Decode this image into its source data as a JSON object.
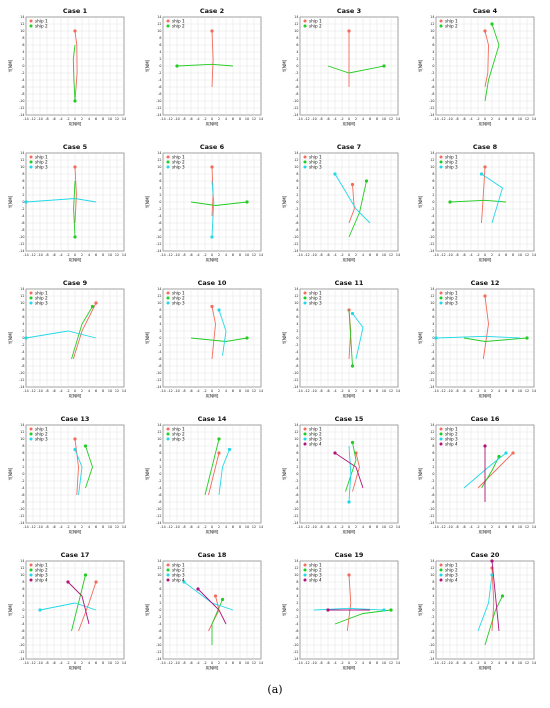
{
  "caption": "(a)",
  "colors": {
    "ship 1": "#f26b5b",
    "ship 2": "#22cc22",
    "ship 3": "#22d8e8",
    "ship 4": "#b0127a"
  },
  "chart_data": [
    {
      "type": "line",
      "title": "Case 1",
      "xlabel": "X[NM]",
      "ylabel": "Y[NM]",
      "xlim": [
        -14,
        14
      ],
      "ylim": [
        -14,
        14
      ],
      "legend": "top-left",
      "series": [
        {
          "name": "ship 1",
          "x": [
            0,
            0.5,
            0.6,
            0
          ],
          "y": [
            10,
            6,
            -2,
            -10
          ]
        },
        {
          "name": "ship 2",
          "x": [
            0,
            -0.3,
            -0.5,
            0
          ],
          "y": [
            -10,
            -4,
            2,
            6
          ]
        }
      ]
    },
    {
      "type": "line",
      "title": "Case 2",
      "xlabel": "X[NM]",
      "ylabel": "Y[NM]",
      "xlim": [
        -14,
        14
      ],
      "ylim": [
        -14,
        14
      ],
      "legend": "top-left",
      "series": [
        {
          "name": "ship 1",
          "x": [
            0,
            0.3,
            0
          ],
          "y": [
            10,
            2,
            -6
          ]
        },
        {
          "name": "ship 2",
          "x": [
            -10,
            0,
            6
          ],
          "y": [
            0,
            0.5,
            0
          ]
        }
      ]
    },
    {
      "type": "line",
      "title": "Case 3",
      "xlabel": "X[NM]",
      "ylabel": "Y[NM]",
      "xlim": [
        -14,
        14
      ],
      "ylim": [
        -14,
        14
      ],
      "legend": "top-left",
      "series": [
        {
          "name": "ship 1",
          "x": [
            0,
            0,
            0
          ],
          "y": [
            10,
            0,
            -6
          ]
        },
        {
          "name": "ship 2",
          "x": [
            10,
            0,
            -6
          ],
          "y": [
            0,
            -2,
            0
          ]
        }
      ]
    },
    {
      "type": "line",
      "title": "Case 4",
      "xlabel": "X[NM]",
      "ylabel": "Y[NM]",
      "xlim": [
        -14,
        14
      ],
      "ylim": [
        -14,
        14
      ],
      "legend": "top-left",
      "series": [
        {
          "name": "ship 1",
          "x": [
            0,
            1,
            0.8,
            0
          ],
          "y": [
            10,
            6,
            -2,
            -6
          ]
        },
        {
          "name": "ship 2",
          "x": [
            2,
            4,
            1,
            0
          ],
          "y": [
            12,
            6,
            -4,
            -10
          ]
        }
      ]
    },
    {
      "type": "line",
      "title": "Case 5",
      "xlabel": "X[NM]",
      "ylabel": "Y[NM]",
      "xlim": [
        -14,
        14
      ],
      "ylim": [
        -14,
        14
      ],
      "legend": "top-left",
      "series": [
        {
          "name": "ship 1",
          "x": [
            0,
            0.4,
            0
          ],
          "y": [
            10,
            2,
            -6
          ]
        },
        {
          "name": "ship 2",
          "x": [
            0,
            -0.4,
            0
          ],
          "y": [
            -10,
            -2,
            6
          ]
        },
        {
          "name": "ship 3",
          "x": [
            -14,
            0,
            6
          ],
          "y": [
            0,
            1,
            0
          ]
        }
      ]
    },
    {
      "type": "line",
      "title": "Case 6",
      "xlabel": "X[NM]",
      "ylabel": "Y[NM]",
      "xlim": [
        -14,
        14
      ],
      "ylim": [
        -14,
        14
      ],
      "legend": "top-left",
      "series": [
        {
          "name": "ship 1",
          "x": [
            0,
            0.3,
            0
          ],
          "y": [
            10,
            2,
            -4
          ]
        },
        {
          "name": "ship 2",
          "x": [
            10,
            1,
            -6
          ],
          "y": [
            0,
            -1,
            0
          ]
        },
        {
          "name": "ship 3",
          "x": [
            0,
            0.5,
            0
          ],
          "y": [
            -10,
            0,
            6
          ]
        }
      ]
    },
    {
      "type": "line",
      "title": "Case 7",
      "xlabel": "X[NM]",
      "ylabel": "Y[NM]",
      "xlim": [
        -14,
        14
      ],
      "ylim": [
        -14,
        14
      ],
      "legend": "top-left",
      "series": [
        {
          "name": "ship 1",
          "x": [
            1,
            1.5,
            0
          ],
          "y": [
            5,
            -2,
            -6
          ]
        },
        {
          "name": "ship 2",
          "x": [
            5,
            3,
            0
          ],
          "y": [
            6,
            -3,
            -10
          ]
        },
        {
          "name": "ship 3",
          "x": [
            -4,
            2,
            6
          ],
          "y": [
            8,
            -2,
            -6
          ]
        }
      ]
    },
    {
      "type": "line",
      "title": "Case 8",
      "xlabel": "X[NM]",
      "ylabel": "Y[NM]",
      "xlim": [
        -14,
        14
      ],
      "ylim": [
        -14,
        14
      ],
      "legend": "top-left",
      "series": [
        {
          "name": "ship 1",
          "x": [
            0,
            -0.5,
            -1
          ],
          "y": [
            10,
            2,
            -6
          ]
        },
        {
          "name": "ship 2",
          "x": [
            -10,
            0,
            6
          ],
          "y": [
            0,
            0.5,
            0
          ]
        },
        {
          "name": "ship 3",
          "x": [
            -1,
            5,
            2
          ],
          "y": [
            8,
            4,
            -6
          ]
        }
      ]
    },
    {
      "type": "line",
      "title": "Case 9",
      "xlabel": "X[NM]",
      "ylabel": "Y[NM]",
      "xlim": [
        -14,
        14
      ],
      "ylim": [
        -14,
        14
      ],
      "legend": "top-left",
      "series": [
        {
          "name": "ship 1",
          "x": [
            6,
            2,
            -0.5
          ],
          "y": [
            10,
            2,
            -6
          ]
        },
        {
          "name": "ship 2",
          "x": [
            5,
            2,
            -1
          ],
          "y": [
            9,
            4,
            -6
          ]
        },
        {
          "name": "ship 3",
          "x": [
            -14,
            -2,
            6
          ],
          "y": [
            0,
            2,
            0
          ]
        }
      ]
    },
    {
      "type": "line",
      "title": "Case 10",
      "xlabel": "X[NM]",
      "ylabel": "Y[NM]",
      "xlim": [
        -14,
        14
      ],
      "ylim": [
        -14,
        14
      ],
      "legend": "top-left",
      "series": [
        {
          "name": "ship 1",
          "x": [
            0,
            1,
            0
          ],
          "y": [
            9,
            4,
            -6
          ]
        },
        {
          "name": "ship 2",
          "x": [
            10,
            4,
            -6
          ],
          "y": [
            0,
            -1,
            0
          ]
        },
        {
          "name": "ship 3",
          "x": [
            2,
            4,
            3
          ],
          "y": [
            8,
            2,
            -5
          ]
        }
      ]
    },
    {
      "type": "line",
      "title": "Case 11",
      "xlabel": "X[NM]",
      "ylabel": "Y[NM]",
      "xlim": [
        -14,
        14
      ],
      "ylim": [
        -14,
        14
      ],
      "legend": "top-left",
      "series": [
        {
          "name": "ship 1",
          "x": [
            0,
            0.5,
            0
          ],
          "y": [
            8,
            2,
            -6
          ]
        },
        {
          "name": "ship 2",
          "x": [
            1,
            0.5,
            0
          ],
          "y": [
            -8,
            0,
            8
          ]
        },
        {
          "name": "ship 3",
          "x": [
            1,
            4,
            2
          ],
          "y": [
            7,
            3,
            -6
          ]
        }
      ]
    },
    {
      "type": "line",
      "title": "Case 12",
      "xlabel": "X[NM]",
      "ylabel": "Y[NM]",
      "xlim": [
        -14,
        14
      ],
      "ylim": [
        -14,
        14
      ],
      "legend": "top-left",
      "series": [
        {
          "name": "ship 1",
          "x": [
            0,
            1,
            -0.5
          ],
          "y": [
            12,
            4,
            -6
          ]
        },
        {
          "name": "ship 2",
          "x": [
            12,
            0,
            -6
          ],
          "y": [
            0,
            -1,
            0
          ]
        },
        {
          "name": "ship 3",
          "x": [
            -14,
            0,
            10
          ],
          "y": [
            0,
            0.5,
            0
          ]
        }
      ]
    },
    {
      "type": "line",
      "title": "Case 13",
      "xlabel": "X[NM]",
      "ylabel": "Y[NM]",
      "xlim": [
        -14,
        14
      ],
      "ylim": [
        -14,
        14
      ],
      "legend": "top-left",
      "series": [
        {
          "name": "ship 1",
          "x": [
            0,
            1,
            0.5
          ],
          "y": [
            10,
            2,
            -6
          ]
        },
        {
          "name": "ship 2",
          "x": [
            3,
            5,
            3
          ],
          "y": [
            8,
            2,
            -4
          ]
        },
        {
          "name": "ship 3",
          "x": [
            0,
            2,
            1
          ],
          "y": [
            7,
            2,
            -6
          ]
        }
      ]
    },
    {
      "type": "line",
      "title": "Case 14",
      "xlabel": "X[NM]",
      "ylabel": "Y[NM]",
      "xlim": [
        -14,
        14
      ],
      "ylim": [
        -14,
        14
      ],
      "legend": "top-left",
      "series": [
        {
          "name": "ship 1",
          "x": [
            2,
            1,
            -1
          ],
          "y": [
            6,
            2,
            -6
          ]
        },
        {
          "name": "ship 2",
          "x": [
            2,
            0,
            -2
          ],
          "y": [
            10,
            2,
            -6
          ]
        },
        {
          "name": "ship 3",
          "x": [
            5,
            3,
            2
          ],
          "y": [
            7,
            2,
            -6
          ]
        }
      ]
    },
    {
      "type": "line",
      "title": "Case 15",
      "xlabel": "X[NM]",
      "ylabel": "Y[NM]",
      "xlim": [
        -14,
        14
      ],
      "ylim": [
        -14,
        14
      ],
      "legend": "top-left",
      "series": [
        {
          "name": "ship 1",
          "x": [
            2,
            3,
            1
          ],
          "y": [
            6,
            2,
            -5
          ]
        },
        {
          "name": "ship 2",
          "x": [
            1,
            2,
            -1
          ],
          "y": [
            9,
            4,
            -5
          ]
        },
        {
          "name": "ship 3",
          "x": [
            0,
            0.5,
            0
          ],
          "y": [
            -8,
            0,
            8
          ]
        },
        {
          "name": "ship 4",
          "x": [
            -4,
            2,
            4
          ],
          "y": [
            6,
            2,
            -4
          ]
        }
      ]
    },
    {
      "type": "line",
      "title": "Case 16",
      "xlabel": "X[NM]",
      "ylabel": "Y[NM]",
      "xlim": [
        -14,
        14
      ],
      "ylim": [
        -14,
        14
      ],
      "legend": "top-left",
      "series": [
        {
          "name": "ship 1",
          "x": [
            8,
            4,
            -2
          ],
          "y": [
            6,
            2,
            -4
          ]
        },
        {
          "name": "ship 2",
          "x": [
            4,
            2,
            -1
          ],
          "y": [
            5,
            1,
            -4
          ]
        },
        {
          "name": "ship 3",
          "x": [
            6,
            1,
            -6
          ],
          "y": [
            6,
            2,
            -4
          ]
        },
        {
          "name": "ship 4",
          "x": [
            0,
            0,
            0
          ],
          "y": [
            8,
            0,
            -8
          ]
        }
      ]
    },
    {
      "type": "line",
      "title": "Case 17",
      "xlabel": "X[NM]",
      "ylabel": "Y[NM]",
      "xlim": [
        -14,
        14
      ],
      "ylim": [
        -14,
        14
      ],
      "legend": "top-left",
      "series": [
        {
          "name": "ship 1",
          "x": [
            6,
            4,
            1
          ],
          "y": [
            8,
            2,
            -6
          ]
        },
        {
          "name": "ship 2",
          "x": [
            3,
            1,
            -1
          ],
          "y": [
            10,
            2,
            -6
          ]
        },
        {
          "name": "ship 3",
          "x": [
            -10,
            0,
            6
          ],
          "y": [
            0,
            2,
            0
          ]
        },
        {
          "name": "ship 4",
          "x": [
            -2,
            2,
            4
          ],
          "y": [
            8,
            4,
            -4
          ]
        }
      ]
    },
    {
      "type": "line",
      "title": "Case 18",
      "xlabel": "X[NM]",
      "ylabel": "Y[NM]",
      "xlim": [
        -14,
        14
      ],
      "ylim": [
        -14,
        14
      ],
      "legend": "top-left",
      "series": [
        {
          "name": "ship 1",
          "x": [
            1,
            2,
            -1
          ],
          "y": [
            4,
            0,
            -6
          ]
        },
        {
          "name": "ship 2",
          "x": [
            3,
            0,
            0
          ],
          "y": [
            3,
            -4,
            -10
          ]
        },
        {
          "name": "ship 3",
          "x": [
            -8,
            0,
            6
          ],
          "y": [
            8,
            2,
            0
          ]
        },
        {
          "name": "ship 4",
          "x": [
            -4,
            2,
            4
          ],
          "y": [
            6,
            0,
            -4
          ]
        }
      ]
    },
    {
      "type": "line",
      "title": "Case 19",
      "xlabel": "X[NM]",
      "ylabel": "Y[NM]",
      "xlim": [
        -14,
        14
      ],
      "ylim": [
        -14,
        14
      ],
      "legend": "top-left",
      "series": [
        {
          "name": "ship 1",
          "x": [
            0,
            0.5,
            -0.5
          ],
          "y": [
            10,
            2,
            -6
          ]
        },
        {
          "name": "ship 2",
          "x": [
            12,
            4,
            -4
          ],
          "y": [
            0,
            -1,
            -4
          ]
        },
        {
          "name": "ship 3",
          "x": [
            10,
            0,
            -10
          ],
          "y": [
            0,
            0.5,
            0
          ]
        },
        {
          "name": "ship 4",
          "x": [
            -6,
            0,
            6
          ],
          "y": [
            0,
            0,
            0
          ]
        }
      ]
    },
    {
      "type": "line",
      "title": "Case 20",
      "xlabel": "X[NM]",
      "ylabel": "Y[NM]",
      "xlim": [
        -14,
        14
      ],
      "ylim": [
        -14,
        14
      ],
      "legend": "top-left",
      "series": [
        {
          "name": "ship 1",
          "x": [
            2,
            2.5,
            2
          ],
          "y": [
            12,
            2,
            -6
          ]
        },
        {
          "name": "ship 2",
          "x": [
            5,
            3,
            0
          ],
          "y": [
            4,
            0,
            -10
          ]
        },
        {
          "name": "ship 3",
          "x": [
            2,
            1,
            -2
          ],
          "y": [
            10,
            2,
            -6
          ]
        },
        {
          "name": "ship 4",
          "x": [
            2,
            3,
            4
          ],
          "y": [
            14,
            4,
            -6
          ]
        }
      ]
    }
  ]
}
